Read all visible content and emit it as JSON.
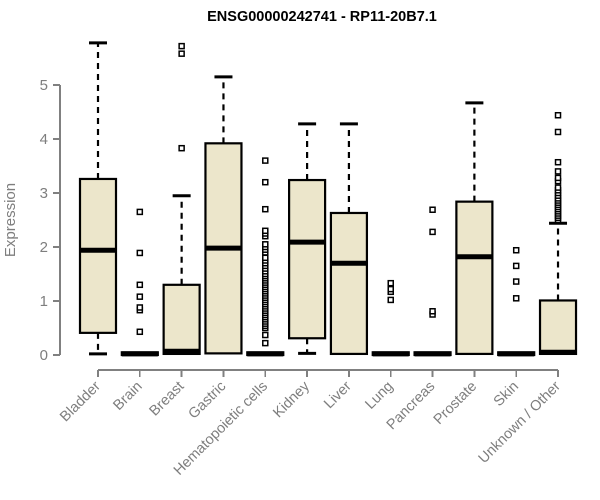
{
  "title": "ENSG00000242741 - RP11-20B7.1",
  "chart_data": {
    "type": "boxplot",
    "title": "ENSG00000242741 - RP11-20B7.1",
    "xlabel": "",
    "ylabel": "Expression",
    "ylim": [
      0,
      5.9
    ],
    "yticks": [
      0,
      1,
      2,
      3,
      4,
      5
    ],
    "grid": false,
    "legend": "none",
    "colors": {
      "box_fill": "#ECE6CB",
      "box_stroke": "#000000",
      "median": "#000000",
      "whisker": "#000000",
      "outlier_fill": "#ffffff",
      "outlier_stroke": "#000000",
      "axis": "#808080",
      "tick_label": "#7E7E7E",
      "title": "#000000",
      "background": "#ffffff"
    },
    "categories": [
      "Bladder",
      "Brain",
      "Breast",
      "Gastric",
      "Hematopoietic cells",
      "Kidney",
      "Liver",
      "Lung",
      "Pancreas",
      "Prostate",
      "Skin",
      "Unknown / Other"
    ],
    "series": [
      {
        "label": "Bladder",
        "whisker_low": 0.02,
        "q1": 0.41,
        "median": 1.94,
        "q3": 3.26,
        "whisker_high": 5.78,
        "outliers": []
      },
      {
        "label": "Brain",
        "whisker_low": 0,
        "q1": 0,
        "median": 0.02,
        "q3": 0.05,
        "whisker_high": 0.05,
        "outliers": [
          0.43,
          0.83,
          0.88,
          1.08,
          1.3,
          1.89,
          2.65
        ]
      },
      {
        "label": "Breast",
        "whisker_low": 0,
        "q1": 0.02,
        "median": 0.07,
        "q3": 1.3,
        "whisker_high": 2.95,
        "outliers": [
          3.83,
          5.58,
          5.72
        ]
      },
      {
        "label": "Gastric",
        "whisker_low": 0,
        "q1": 0.03,
        "median": 1.98,
        "q3": 3.92,
        "whisker_high": 5.15,
        "outliers": []
      },
      {
        "label": "Hematopoietic cells",
        "whisker_low": 0,
        "q1": 0,
        "median": 0.02,
        "q3": 0.05,
        "whisker_high": 0.05,
        "outliers": [
          0.22,
          0.37,
          0.5,
          0.54,
          0.58,
          0.62,
          0.66,
          0.7,
          0.74,
          0.78,
          0.82,
          0.86,
          0.9,
          0.94,
          0.98,
          1.02,
          1.06,
          1.1,
          1.14,
          1.18,
          1.22,
          1.26,
          1.3,
          1.34,
          1.38,
          1.42,
          1.46,
          1.5,
          1.55,
          1.6,
          1.65,
          1.7,
          1.75,
          1.8,
          1.9,
          1.95,
          2.0,
          2.05,
          2.2,
          2.25,
          2.3,
          2.7,
          3.2,
          3.6
        ]
      },
      {
        "label": "Kidney",
        "whisker_low": 0.03,
        "q1": 0.31,
        "median": 2.09,
        "q3": 3.24,
        "whisker_high": 4.28,
        "outliers": []
      },
      {
        "label": "Liver",
        "whisker_low": 0,
        "q1": 0.02,
        "median": 1.7,
        "q3": 2.63,
        "whisker_high": 4.28,
        "outliers": []
      },
      {
        "label": "Lung",
        "whisker_low": 0,
        "q1": 0,
        "median": 0.02,
        "q3": 0.05,
        "whisker_high": 0.05,
        "outliers": [
          1.02,
          1.17,
          1.22,
          1.33
        ]
      },
      {
        "label": "Pancreas",
        "whisker_low": 0,
        "q1": 0,
        "median": 0.02,
        "q3": 0.05,
        "whisker_high": 0.05,
        "outliers": [
          0.75,
          0.81,
          2.28,
          2.69
        ]
      },
      {
        "label": "Prostate",
        "whisker_low": 0,
        "q1": 0.02,
        "median": 1.82,
        "q3": 2.84,
        "whisker_high": 4.67,
        "outliers": []
      },
      {
        "label": "Skin",
        "whisker_low": 0,
        "q1": 0,
        "median": 0.02,
        "q3": 0.05,
        "whisker_high": 0.05,
        "outliers": [
          1.05,
          1.36,
          1.65,
          1.94
        ]
      },
      {
        "label": "Unknown / Other",
        "whisker_low": 0,
        "q1": 0.02,
        "median": 0.05,
        "q3": 1.01,
        "whisker_high": 2.44,
        "outliers": [
          2.5,
          2.54,
          2.58,
          2.62,
          2.66,
          2.7,
          2.74,
          2.78,
          2.82,
          2.86,
          2.9,
          2.95,
          3.0,
          3.05,
          3.1,
          3.22,
          3.28,
          3.4,
          3.57,
          4.13,
          4.44
        ]
      }
    ]
  }
}
